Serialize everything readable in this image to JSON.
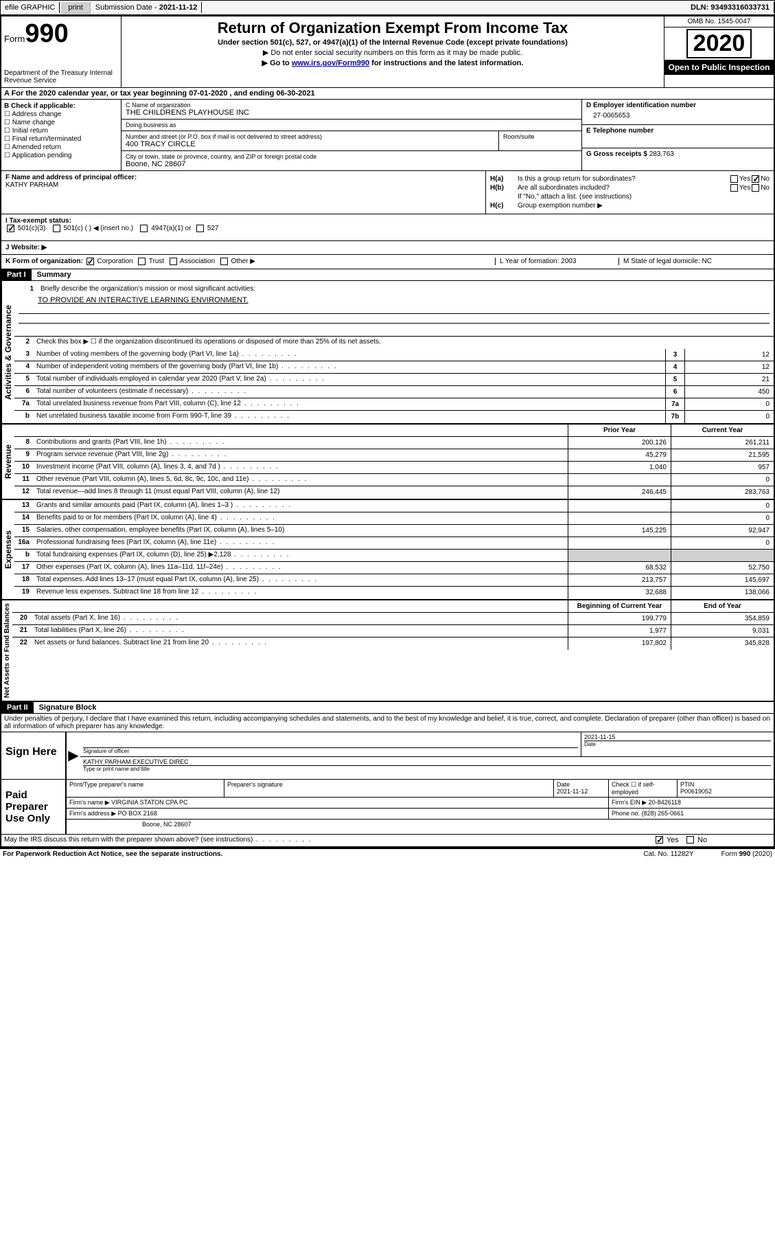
{
  "topbar": {
    "efile": "efile GRAPHIC",
    "print": "print",
    "sub_label": "Submission Date - ",
    "sub_date": "2021-11-12",
    "dln": "DLN: 93493316033731"
  },
  "header": {
    "form_prefix": "Form",
    "form_number": "990",
    "dept": "Department of the Treasury\nInternal Revenue Service",
    "title": "Return of Organization Exempt From Income Tax",
    "subtitle": "Under section 501(c), 527, or 4947(a)(1) of the Internal Revenue Code (except private foundations)",
    "note1": "▶ Do not enter social security numbers on this form as it may be made public.",
    "note2_pre": "▶ Go to ",
    "note2_link": "www.irs.gov/Form990",
    "note2_post": " for instructions and the latest information.",
    "omb": "OMB No. 1545-0047",
    "year": "2020",
    "inspection": "Open to Public Inspection"
  },
  "row_a": "A For the 2020 calendar year, or tax year beginning 07-01-2020    , and ending 06-30-2021",
  "section_b": {
    "label": "B Check if applicable:",
    "opts": [
      "Address change",
      "Name change",
      "Initial return",
      "Final return/terminated",
      "Amended return",
      "Application pending"
    ]
  },
  "section_c": {
    "name_label": "C Name of organization",
    "name": "THE CHILDRENS PLAYHOUSE INC",
    "dba_label": "Doing business as",
    "dba": "",
    "addr_label": "Number and street (or P.O. box if mail is not delivered to street address)",
    "addr": "400 TRACY CIRCLE",
    "room_label": "Room/suite",
    "room": "",
    "city_label": "City or town, state or province, country, and ZIP or foreign postal code",
    "city": "Boone, NC  28607"
  },
  "section_d": {
    "ein_label": "D Employer identification number",
    "ein": "27-0065653",
    "phone_label": "E Telephone number",
    "phone": "",
    "gross_label": "G Gross receipts $ ",
    "gross": "283,763"
  },
  "section_f": {
    "label": "F  Name and address of principal officer:",
    "name": "KATHY PARHAM"
  },
  "section_h": {
    "ha_label": "H(a)",
    "ha_text": "Is this a group return for subordinates?",
    "hb_label": "H(b)",
    "hb_text": "Are all subordinates included?",
    "hb_note": "If \"No,\" attach a list. (see instructions)",
    "hc_label": "H(c)",
    "hc_text": "Group exemption number ▶",
    "yes": "Yes",
    "no": "No"
  },
  "row_i": {
    "label": "I   Tax-exempt status:",
    "opts": [
      "501(c)(3)",
      "501(c) (  ) ◀ (insert no.)",
      "4947(a)(1) or",
      "527"
    ]
  },
  "row_j": {
    "label": "J   Website: ▶"
  },
  "row_k": {
    "left": "K Form of organization:",
    "opts": [
      "Corporation",
      "Trust",
      "Association",
      "Other ▶"
    ],
    "mid": "L Year of formation: 2003",
    "right": "M State of legal domicile: NC"
  },
  "part1": {
    "header": "Part I",
    "title": "Summary",
    "vert_gov": "Activities & Governance",
    "vert_rev": "Revenue",
    "vert_exp": "Expenses",
    "vert_net": "Net Assets or Fund Balances",
    "line1_label": "Briefly describe the organization's mission or most significant activities:",
    "line1_text": "TO PROVIDE AN INTERACTIVE LEARNING ENVIRONMENT.",
    "line2": "Check this box ▶ ☐  if the organization discontinued its operations or disposed of more than 25% of its net assets.",
    "lines_gov": [
      {
        "num": "3",
        "text": "Number of voting members of the governing body (Part VI, line 1a)",
        "box": "3",
        "val": "12"
      },
      {
        "num": "4",
        "text": "Number of independent voting members of the governing body (Part VI, line 1b)",
        "box": "4",
        "val": "12"
      },
      {
        "num": "5",
        "text": "Total number of individuals employed in calendar year 2020 (Part V, line 2a)",
        "box": "5",
        "val": "21"
      },
      {
        "num": "6",
        "text": "Total number of volunteers (estimate if necessary)",
        "box": "6",
        "val": "450"
      },
      {
        "num": "7a",
        "text": "Total unrelated business revenue from Part VIII, column (C), line 12",
        "box": "7a",
        "val": "0"
      },
      {
        "num": "b",
        "text": "Net unrelated business taxable income from Form 990-T, line 39",
        "box": "7b",
        "val": "0"
      }
    ],
    "col_prior": "Prior Year",
    "col_current": "Current Year",
    "lines_rev": [
      {
        "num": "8",
        "text": "Contributions and grants (Part VIII, line 1h)",
        "prior": "200,126",
        "curr": "261,211"
      },
      {
        "num": "9",
        "text": "Program service revenue (Part VIII, line 2g)",
        "prior": "45,279",
        "curr": "21,595"
      },
      {
        "num": "10",
        "text": "Investment income (Part VIII, column (A), lines 3, 4, and 7d )",
        "prior": "1,040",
        "curr": "957"
      },
      {
        "num": "11",
        "text": "Other revenue (Part VIII, column (A), lines 5, 6d, 8c, 9c, 10c, and 11e)",
        "prior": "",
        "curr": "0"
      },
      {
        "num": "12",
        "text": "Total revenue—add lines 8 through 11 (must equal Part VIII, column (A), line 12)",
        "prior": "246,445",
        "curr": "283,763"
      }
    ],
    "lines_exp": [
      {
        "num": "13",
        "text": "Grants and similar amounts paid (Part IX, column (A), lines 1–3 )",
        "prior": "",
        "curr": "0"
      },
      {
        "num": "14",
        "text": "Benefits paid to or for members (Part IX, column (A), line 4)",
        "prior": "",
        "curr": "0"
      },
      {
        "num": "15",
        "text": "Salaries, other compensation, employee benefits (Part IX, column (A), lines 5–10)",
        "prior": "145,225",
        "curr": "92,947"
      },
      {
        "num": "16a",
        "text": "Professional fundraising fees (Part IX, column (A), line 11e)",
        "prior": "",
        "curr": "0"
      },
      {
        "num": "b",
        "text": "Total fundraising expenses (Part IX, column (D), line 25) ▶2,128",
        "prior": "SHADE",
        "curr": "SHADE"
      },
      {
        "num": "17",
        "text": "Other expenses (Part IX, column (A), lines 11a–11d, 11f–24e)",
        "prior": "68,532",
        "curr": "52,750"
      },
      {
        "num": "18",
        "text": "Total expenses. Add lines 13–17 (must equal Part IX, column (A), line 25)",
        "prior": "213,757",
        "curr": "145,697"
      },
      {
        "num": "19",
        "text": "Revenue less expenses. Subtract line 18 from line 12",
        "prior": "32,688",
        "curr": "138,066"
      }
    ],
    "col_begin": "Beginning of Current Year",
    "col_end": "End of Year",
    "lines_net": [
      {
        "num": "20",
        "text": "Total assets (Part X, line 16)",
        "prior": "199,779",
        "curr": "354,859"
      },
      {
        "num": "21",
        "text": "Total liabilities (Part X, line 26)",
        "prior": "1,977",
        "curr": "9,031"
      },
      {
        "num": "22",
        "text": "Net assets or fund balances. Subtract line 21 from line 20",
        "prior": "197,802",
        "curr": "345,828"
      }
    ]
  },
  "part2": {
    "header": "Part II",
    "title": "Signature Block",
    "decl": "Under penalties of perjury, I declare that I have examined this return, including accompanying schedules and statements, and to the best of my knowledge and belief, it is true, correct, and complete. Declaration of preparer (other than officer) is based on all information of which preparer has any knowledge."
  },
  "sign": {
    "label": "Sign Here",
    "sig_officer": "Signature of officer",
    "date_label": "Date",
    "date": "2021-11-15",
    "name": "KATHY PARHAM  EXECUTIVE DIREC",
    "name_label": "Type or print name and title"
  },
  "preparer": {
    "label": "Paid Preparer Use Only",
    "print_name_label": "Print/Type preparer's name",
    "prep_sig_label": "Preparer's signature",
    "date_label": "Date",
    "date": "2021-11-12",
    "check_label": "Check ☐ if self-employed",
    "ptin_label": "PTIN",
    "ptin": "P00619052",
    "firm_name_label": "Firm's name      ▶",
    "firm_name": "VIRGINIA STATON CPA PC",
    "firm_ein_label": "Firm's EIN ▶",
    "firm_ein": "20-8426118",
    "firm_addr_label": "Firm's address ▶",
    "firm_addr1": "PO BOX 2168",
    "firm_addr2": "Boone, NC  28607",
    "phone_label": "Phone no.",
    "phone": "(828) 265-0661",
    "discuss": "May the IRS discuss this return with the preparer shown above? (see instructions)"
  },
  "footer": {
    "left": "For Paperwork Reduction Act Notice, see the separate instructions.",
    "mid": "Cat. No. 11282Y",
    "right": "Form 990 (2020)"
  }
}
